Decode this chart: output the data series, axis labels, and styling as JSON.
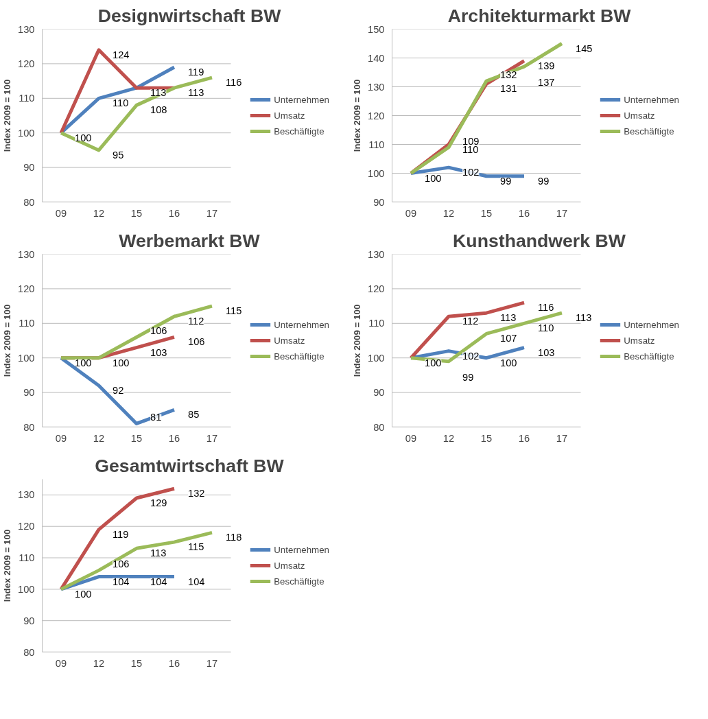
{
  "chart_data": [
    {
      "type": "line",
      "title": "Designwirtschaft BW",
      "ylabel": "Index 2009 = 100",
      "categories": [
        "09",
        "12",
        "15",
        "16",
        "17"
      ],
      "ylim": [
        80,
        130
      ],
      "yticks": [
        80,
        90,
        100,
        110,
        120,
        130
      ],
      "grid": "y",
      "legend": "right",
      "line_style": "solid",
      "series": [
        {
          "name": "Unternehmen",
          "color": "#4f81bd",
          "values": [
            100,
            110,
            113,
            119,
            null
          ],
          "value_labels": [
            null,
            "110",
            null,
            "119",
            null
          ]
        },
        {
          "name": "Umsatz",
          "color": "#c0504d",
          "values": [
            100,
            124,
            113,
            113,
            null
          ],
          "value_labels": [
            null,
            "124",
            "113",
            null,
            null
          ]
        },
        {
          "name": "Beschäftigte",
          "color": "#9bbb59",
          "values": [
            100,
            95,
            108,
            113,
            116
          ],
          "value_labels": [
            "100",
            "95",
            "108",
            "113",
            "116"
          ]
        }
      ]
    },
    {
      "type": "line",
      "title": "Architekturmarkt BW",
      "ylabel": "Index 2009 = 100",
      "categories": [
        "09",
        "12",
        "15",
        "16",
        "17"
      ],
      "ylim": [
        90,
        150
      ],
      "yticks": [
        90,
        100,
        110,
        120,
        130,
        140,
        150
      ],
      "grid": "y",
      "legend": "right",
      "line_style": "solid",
      "series": [
        {
          "name": "Unternehmen",
          "color": "#4f81bd",
          "values": [
            100,
            102,
            99,
            99,
            null
          ],
          "value_labels": [
            "100",
            "102",
            "99",
            "99",
            null
          ]
        },
        {
          "name": "Umsatz",
          "color": "#c0504d",
          "values": [
            100,
            110,
            131,
            139,
            null
          ],
          "value_labels": [
            null,
            "110",
            "131",
            "139",
            null
          ]
        },
        {
          "name": "Beschäftigte",
          "color": "#9bbb59",
          "values": [
            100,
            109,
            132,
            137,
            145
          ],
          "value_labels": [
            null,
            "109",
            "132",
            "137",
            "145"
          ]
        }
      ]
    },
    {
      "type": "line",
      "title": "Werbemarkt BW",
      "ylabel": "Index 2009 = 100",
      "categories": [
        "09",
        "12",
        "15",
        "16",
        "17"
      ],
      "ylim": [
        80,
        130
      ],
      "yticks": [
        80,
        90,
        100,
        110,
        120,
        130
      ],
      "grid": "y",
      "legend": "right",
      "line_style": "solid",
      "series": [
        {
          "name": "Unternehmen",
          "color": "#4f81bd",
          "values": [
            100,
            92,
            81,
            85,
            null
          ],
          "value_labels": [
            null,
            "92",
            "81",
            "85",
            null
          ]
        },
        {
          "name": "Umsatz",
          "color": "#c0504d",
          "values": [
            100,
            100,
            103,
            106,
            null
          ],
          "value_labels": [
            null,
            "100",
            "103",
            "106",
            null
          ]
        },
        {
          "name": "Beschäftigte",
          "color": "#9bbb59",
          "values": [
            100,
            100,
            106,
            112,
            115
          ],
          "value_labels": [
            "100",
            null,
            "106",
            "112",
            "115"
          ]
        }
      ]
    },
    {
      "type": "line",
      "title": "Kunsthandwerk BW",
      "ylabel": "Index 2009 = 100",
      "categories": [
        "09",
        "12",
        "15",
        "16",
        "17"
      ],
      "ylim": [
        80,
        130
      ],
      "yticks": [
        80,
        90,
        100,
        110,
        120,
        130
      ],
      "grid": "y",
      "legend": "right",
      "line_style": "solid",
      "series": [
        {
          "name": "Unternehmen",
          "color": "#4f81bd",
          "values": [
            100,
            102,
            100,
            103,
            null
          ],
          "value_labels": [
            null,
            "102",
            "100",
            "103",
            null
          ]
        },
        {
          "name": "Umsatz",
          "color": "#c0504d",
          "values": [
            100,
            112,
            113,
            116,
            null
          ],
          "value_labels": [
            null,
            "112",
            "113",
            "116",
            null
          ]
        },
        {
          "name": "Beschäftigte",
          "color": "#9bbb59",
          "values": [
            100,
            99,
            107,
            110,
            113
          ],
          "value_labels": [
            "100",
            "99",
            "107",
            "110",
            "113"
          ]
        }
      ]
    },
    {
      "type": "line",
      "title": "Gesamtwirtschaft BW",
      "ylabel": "Index 2009 = 100",
      "categories": [
        "09",
        "12",
        "15",
        "16",
        "17"
      ],
      "ylim": [
        80,
        135
      ],
      "yticks": [
        80,
        90,
        100,
        110,
        120,
        130
      ],
      "grid": "y",
      "legend": "right",
      "line_style": "solid",
      "series": [
        {
          "name": "Unternehmen",
          "color": "#4f81bd",
          "values": [
            100,
            104,
            104,
            104,
            null
          ],
          "value_labels": [
            null,
            "104",
            "104",
            "104",
            null
          ]
        },
        {
          "name": "Umsatz",
          "color": "#c0504d",
          "values": [
            100,
            119,
            129,
            132,
            null
          ],
          "value_labels": [
            null,
            "119",
            "129",
            "132",
            null
          ]
        },
        {
          "name": "Beschäftigte",
          "color": "#9bbb59",
          "values": [
            100,
            106,
            113,
            115,
            118
          ],
          "value_labels": [
            "100",
            "106",
            "113",
            "115",
            "118"
          ]
        }
      ]
    }
  ]
}
